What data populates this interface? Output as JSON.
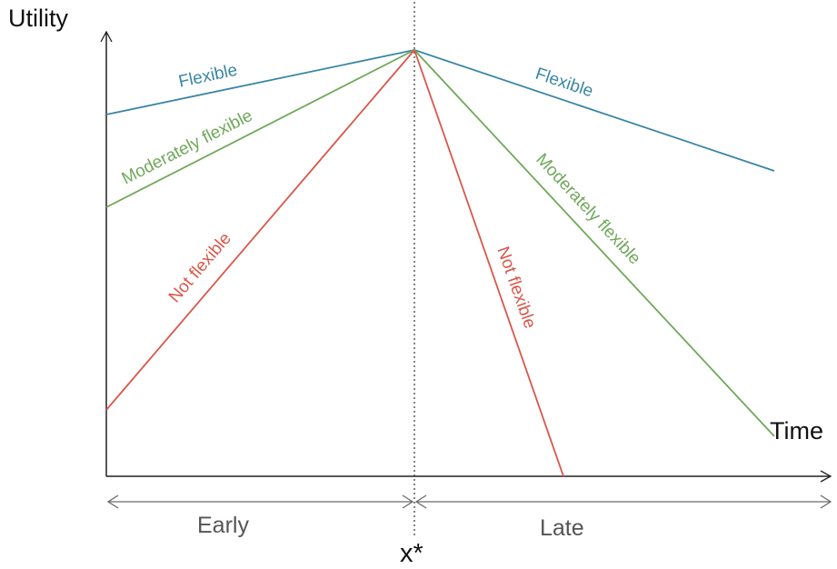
{
  "axes": {
    "y_label": "Utility",
    "x_label": "Time",
    "optimum_label": "x*"
  },
  "ranges": {
    "early_label": "Early",
    "late_label": "Late"
  },
  "curves": {
    "flexible": {
      "label": "Flexible",
      "color": "#3a86a6"
    },
    "moderate": {
      "label": "Moderately flexible",
      "color": "#6fa85a"
    },
    "not_flexible": {
      "label": "Not flexible",
      "color": "#d9574a"
    }
  },
  "colors": {
    "axis": "#222222",
    "range_arrow": "#6b6b6b"
  }
}
